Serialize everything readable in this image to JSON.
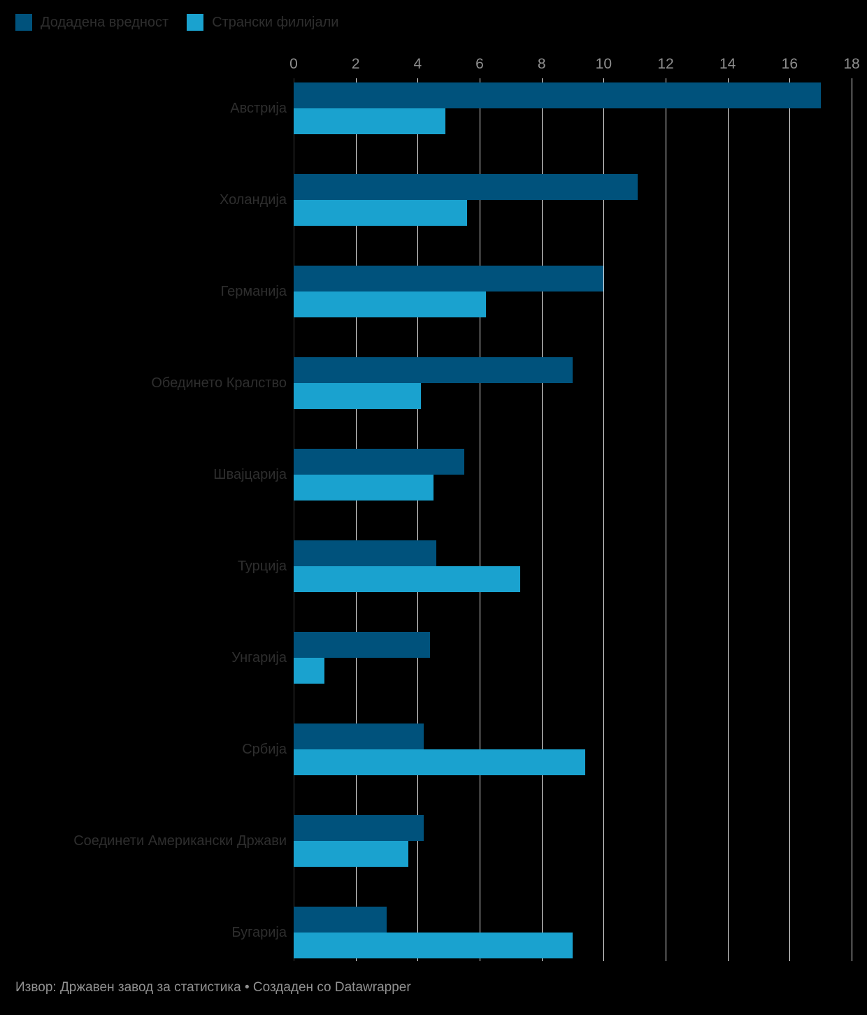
{
  "legend": {
    "items": [
      {
        "label": "Додадена вредност",
        "color": "#00527c"
      },
      {
        "label": "Странски филијали",
        "color": "#1aa2cf"
      }
    ]
  },
  "footer": {
    "text": "Извор: Државен завод за статистика • Создаден со Datawrapper"
  },
  "chart_data": {
    "type": "bar",
    "orientation": "horizontal",
    "title": "",
    "xlabel": "",
    "ylabel": "",
    "xlim": [
      0,
      18
    ],
    "xticks": [
      0,
      2,
      4,
      6,
      8,
      10,
      12,
      14,
      16,
      18
    ],
    "grid": "vertical",
    "gridline_color": "#ffffff",
    "legend_position": "top-left",
    "background_color": "#000000",
    "categories": [
      "Австрија",
      "Холандија",
      "Германија",
      "Обединето Кралство",
      "Швајцарија",
      "Турција",
      "Унгарија",
      "Србија",
      "Соединети Американски Држави",
      "Бугарија"
    ],
    "series": [
      {
        "name": "Додадена вредност",
        "color": "#00527c",
        "values": [
          17.0,
          11.1,
          10.0,
          9.0,
          5.5,
          4.6,
          4.4,
          4.2,
          4.2,
          3.0
        ]
      },
      {
        "name": "Странски филијали",
        "color": "#1aa2cf",
        "values": [
          4.9,
          5.6,
          6.2,
          4.1,
          4.5,
          7.3,
          1.0,
          9.4,
          3.7,
          9.0
        ]
      }
    ]
  }
}
